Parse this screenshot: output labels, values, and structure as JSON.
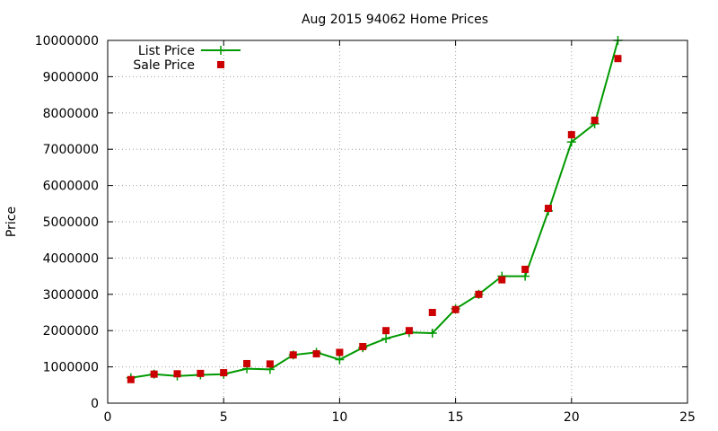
{
  "chart_data": {
    "type": "line",
    "title": "Aug 2015 94062 Home Prices",
    "xlabel": "",
    "ylabel": "Price",
    "xlim": [
      0,
      25
    ],
    "ylim": [
      0,
      10000000
    ],
    "xticks": [
      0,
      5,
      10,
      15,
      20,
      25
    ],
    "yticks": [
      0,
      1000000,
      2000000,
      3000000,
      4000000,
      5000000,
      6000000,
      7000000,
      8000000,
      9000000,
      10000000
    ],
    "grid": true,
    "legend_position": "top-left",
    "series": [
      {
        "name": "List Price",
        "style": "line-plus",
        "color": "#009900",
        "x": [
          1,
          2,
          3,
          4,
          5,
          6,
          7,
          8,
          9,
          10,
          11,
          12,
          13,
          14,
          15,
          16,
          17,
          18,
          19,
          20,
          21,
          22
        ],
        "y": [
          700000,
          800000,
          750000,
          780000,
          800000,
          950000,
          930000,
          1330000,
          1400000,
          1200000,
          1530000,
          1780000,
          1950000,
          1930000,
          2600000,
          3000000,
          3500000,
          3500000,
          5300000,
          7200000,
          7700000,
          10000000
        ]
      },
      {
        "name": "Sale Price",
        "style": "square-points",
        "color": "#cc0000",
        "x": [
          1,
          2,
          3,
          4,
          5,
          6,
          7,
          8,
          9,
          10,
          11,
          12,
          13,
          14,
          15,
          16,
          17,
          18,
          19,
          20,
          21,
          22
        ],
        "y": [
          650000,
          800000,
          810000,
          820000,
          840000,
          1090000,
          1080000,
          1330000,
          1360000,
          1400000,
          1560000,
          2000000,
          2000000,
          2500000,
          2580000,
          3000000,
          3400000,
          3690000,
          5370000,
          7400000,
          7800000,
          9500000
        ]
      }
    ]
  }
}
